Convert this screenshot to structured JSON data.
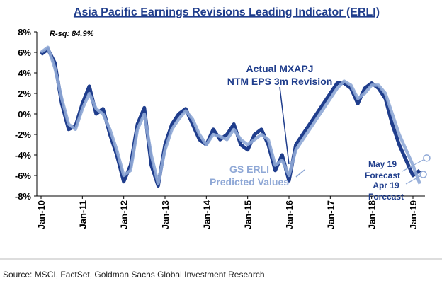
{
  "chart_data": {
    "type": "line",
    "title": "Asia Pacific Earnings Revisions Leading Indicator (ERLI)",
    "stat_label": "R-sq: 84.9%",
    "source": "Source: MSCI, FactSet, Goldman Sachs Global Investment Research",
    "x": [
      0,
      2,
      4,
      6,
      8,
      10,
      12,
      14,
      16,
      18,
      20,
      22,
      24,
      26,
      28,
      30,
      32,
      34,
      36,
      38,
      40,
      42,
      44,
      46,
      48,
      50,
      52,
      54,
      56,
      58,
      60,
      62,
      64,
      66,
      68,
      70,
      72,
      74,
      76,
      78,
      80,
      82,
      84,
      86,
      88,
      90,
      92,
      94,
      96,
      98,
      100,
      102,
      104,
      106,
      108,
      110
    ],
    "xlim": [
      0,
      115
    ],
    "xticks": [
      {
        "value": 0,
        "label": "Jan-10"
      },
      {
        "value": 12,
        "label": "Jan-11"
      },
      {
        "value": 24,
        "label": "Jan-12"
      },
      {
        "value": 36,
        "label": "Jan-13"
      },
      {
        "value": 48,
        "label": "Jan-14"
      },
      {
        "value": 60,
        "label": "Jan-15"
      },
      {
        "value": 72,
        "label": "Jan-16"
      },
      {
        "value": 84,
        "label": "Jan-17"
      },
      {
        "value": 96,
        "label": "Jan-18"
      },
      {
        "value": 108,
        "label": "Jan-19"
      }
    ],
    "ylim": [
      -8,
      8
    ],
    "yticks": [
      {
        "value": 8,
        "label": "8%"
      },
      {
        "value": 6,
        "label": "6%"
      },
      {
        "value": 4,
        "label": "4%"
      },
      {
        "value": 2,
        "label": "2%"
      },
      {
        "value": 0,
        "label": "0%"
      },
      {
        "value": -2,
        "label": "-2%"
      },
      {
        "value": -4,
        "label": "-4%"
      },
      {
        "value": -6,
        "label": "-6%"
      },
      {
        "value": -8,
        "label": "-8%"
      }
    ],
    "series": [
      {
        "name": "Actual MXAPJ NTM EPS 3m Revision",
        "label_lines": [
          "Actual MXAPJ",
          "NTM EPS 3m Revision"
        ],
        "color": "#1f3d8c",
        "values": [
          5.8,
          6.3,
          5,
          1,
          -1.5,
          -1.2,
          1,
          2.7,
          0,
          0.5,
          -2,
          -4,
          -6.6,
          -5,
          -1,
          0.6,
          -5,
          -7,
          -3,
          -1,
          0,
          0.5,
          -1,
          -2.5,
          -3,
          -1.5,
          -2.5,
          -2,
          -1,
          -3,
          -3.5,
          -2,
          -1.5,
          -3,
          -5.5,
          -4,
          -6.5,
          -3,
          -2,
          -1,
          0,
          1,
          2,
          3,
          3,
          2.5,
          1,
          2.5,
          3,
          2.5,
          1.5,
          -1,
          -3,
          -4.5,
          -6,
          -5.5
        ]
      },
      {
        "name": "GS ERLI Predicted Values",
        "label_lines": [
          "GS ERLI",
          "Predicted Values"
        ],
        "color": "#8fa8d6",
        "values": [
          6,
          6.5,
          4.5,
          1.5,
          -1,
          -1.5,
          0.5,
          2,
          0.5,
          0,
          -1.5,
          -3.5,
          -6,
          -5.5,
          -1.5,
          0,
          -4,
          -6.8,
          -3.5,
          -1.5,
          -0.5,
          0.3,
          -0.5,
          -2,
          -3,
          -2,
          -2.2,
          -2.5,
          -1.5,
          -2.5,
          -3,
          -2.5,
          -2,
          -2.5,
          -5,
          -4.5,
          -6,
          -3.5,
          -2.5,
          -1.5,
          -0.5,
          0.5,
          1.5,
          2.5,
          3.2,
          2.8,
          1.5,
          2,
          2.8,
          2.8,
          2,
          0,
          -2,
          -3.5,
          -5,
          -6.8
        ]
      }
    ],
    "forecasts": [
      {
        "label_lines": [
          "May 19",
          "Forecast"
        ],
        "x": 112,
        "y": -4.3
      },
      {
        "label_lines": [
          "Apr 19",
          "Forecast"
        ],
        "x": 111,
        "y": -5.9
      }
    ]
  }
}
